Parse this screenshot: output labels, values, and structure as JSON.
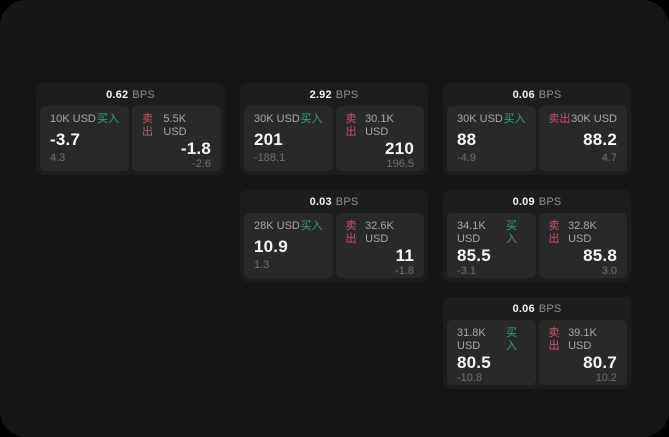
{
  "colors": {
    "backdrop": "#000000",
    "surface_bg": "#161617",
    "card_bg": "#1d1d1f",
    "panel_bg": "#29292c",
    "buy_green": "#36a564",
    "sell_red": "#d25064",
    "price_text": "#f7f7f8",
    "size_text": "#a8a8ab",
    "delta_text": "#707073",
    "bps_unit_text": "#8f8f92"
  },
  "labels": {
    "bps_unit": "BPS",
    "buy": "买入",
    "sell": "卖出"
  },
  "cards": [
    {
      "bps": "0.62",
      "grid": {
        "row": 1,
        "col": 1
      },
      "buy": {
        "size": "10K USD",
        "price": "-3.7",
        "delta": "4.3"
      },
      "sell": {
        "size": "5.5K USD",
        "price": "-1.8",
        "delta": "-2.6"
      }
    },
    {
      "bps": "2.92",
      "grid": {
        "row": 1,
        "col": 2
      },
      "buy": {
        "size": "30K USD",
        "price": "201",
        "delta": "-188.1"
      },
      "sell": {
        "size": "30.1K USD",
        "price": "210",
        "delta": "196.5"
      }
    },
    {
      "bps": "0.06",
      "grid": {
        "row": 1,
        "col": 3
      },
      "buy": {
        "size": "30K USD",
        "price": "88",
        "delta": "-4.9"
      },
      "sell": {
        "size": "30K USD",
        "price": "88.2",
        "delta": "4.7"
      }
    },
    {
      "bps": "0.03",
      "grid": {
        "row": 2,
        "col": 2
      },
      "buy": {
        "size": "28K USD",
        "price": "10.9",
        "delta": "1.3"
      },
      "sell": {
        "size": "32.6K USD",
        "price": "11",
        "delta": "-1.8"
      }
    },
    {
      "bps": "0.09",
      "grid": {
        "row": 2,
        "col": 3
      },
      "buy": {
        "size": "34.1K USD",
        "price": "85.5",
        "delta": "-3.1"
      },
      "sell": {
        "size": "32.8K USD",
        "price": "85.8",
        "delta": "3.0"
      }
    },
    {
      "bps": "0.06",
      "grid": {
        "row": 3,
        "col": 3
      },
      "buy": {
        "size": "31.8K USD",
        "price": "80.5",
        "delta": "-10.8"
      },
      "sell": {
        "size": "39.1K USD",
        "price": "80.7",
        "delta": "10.2"
      }
    }
  ]
}
